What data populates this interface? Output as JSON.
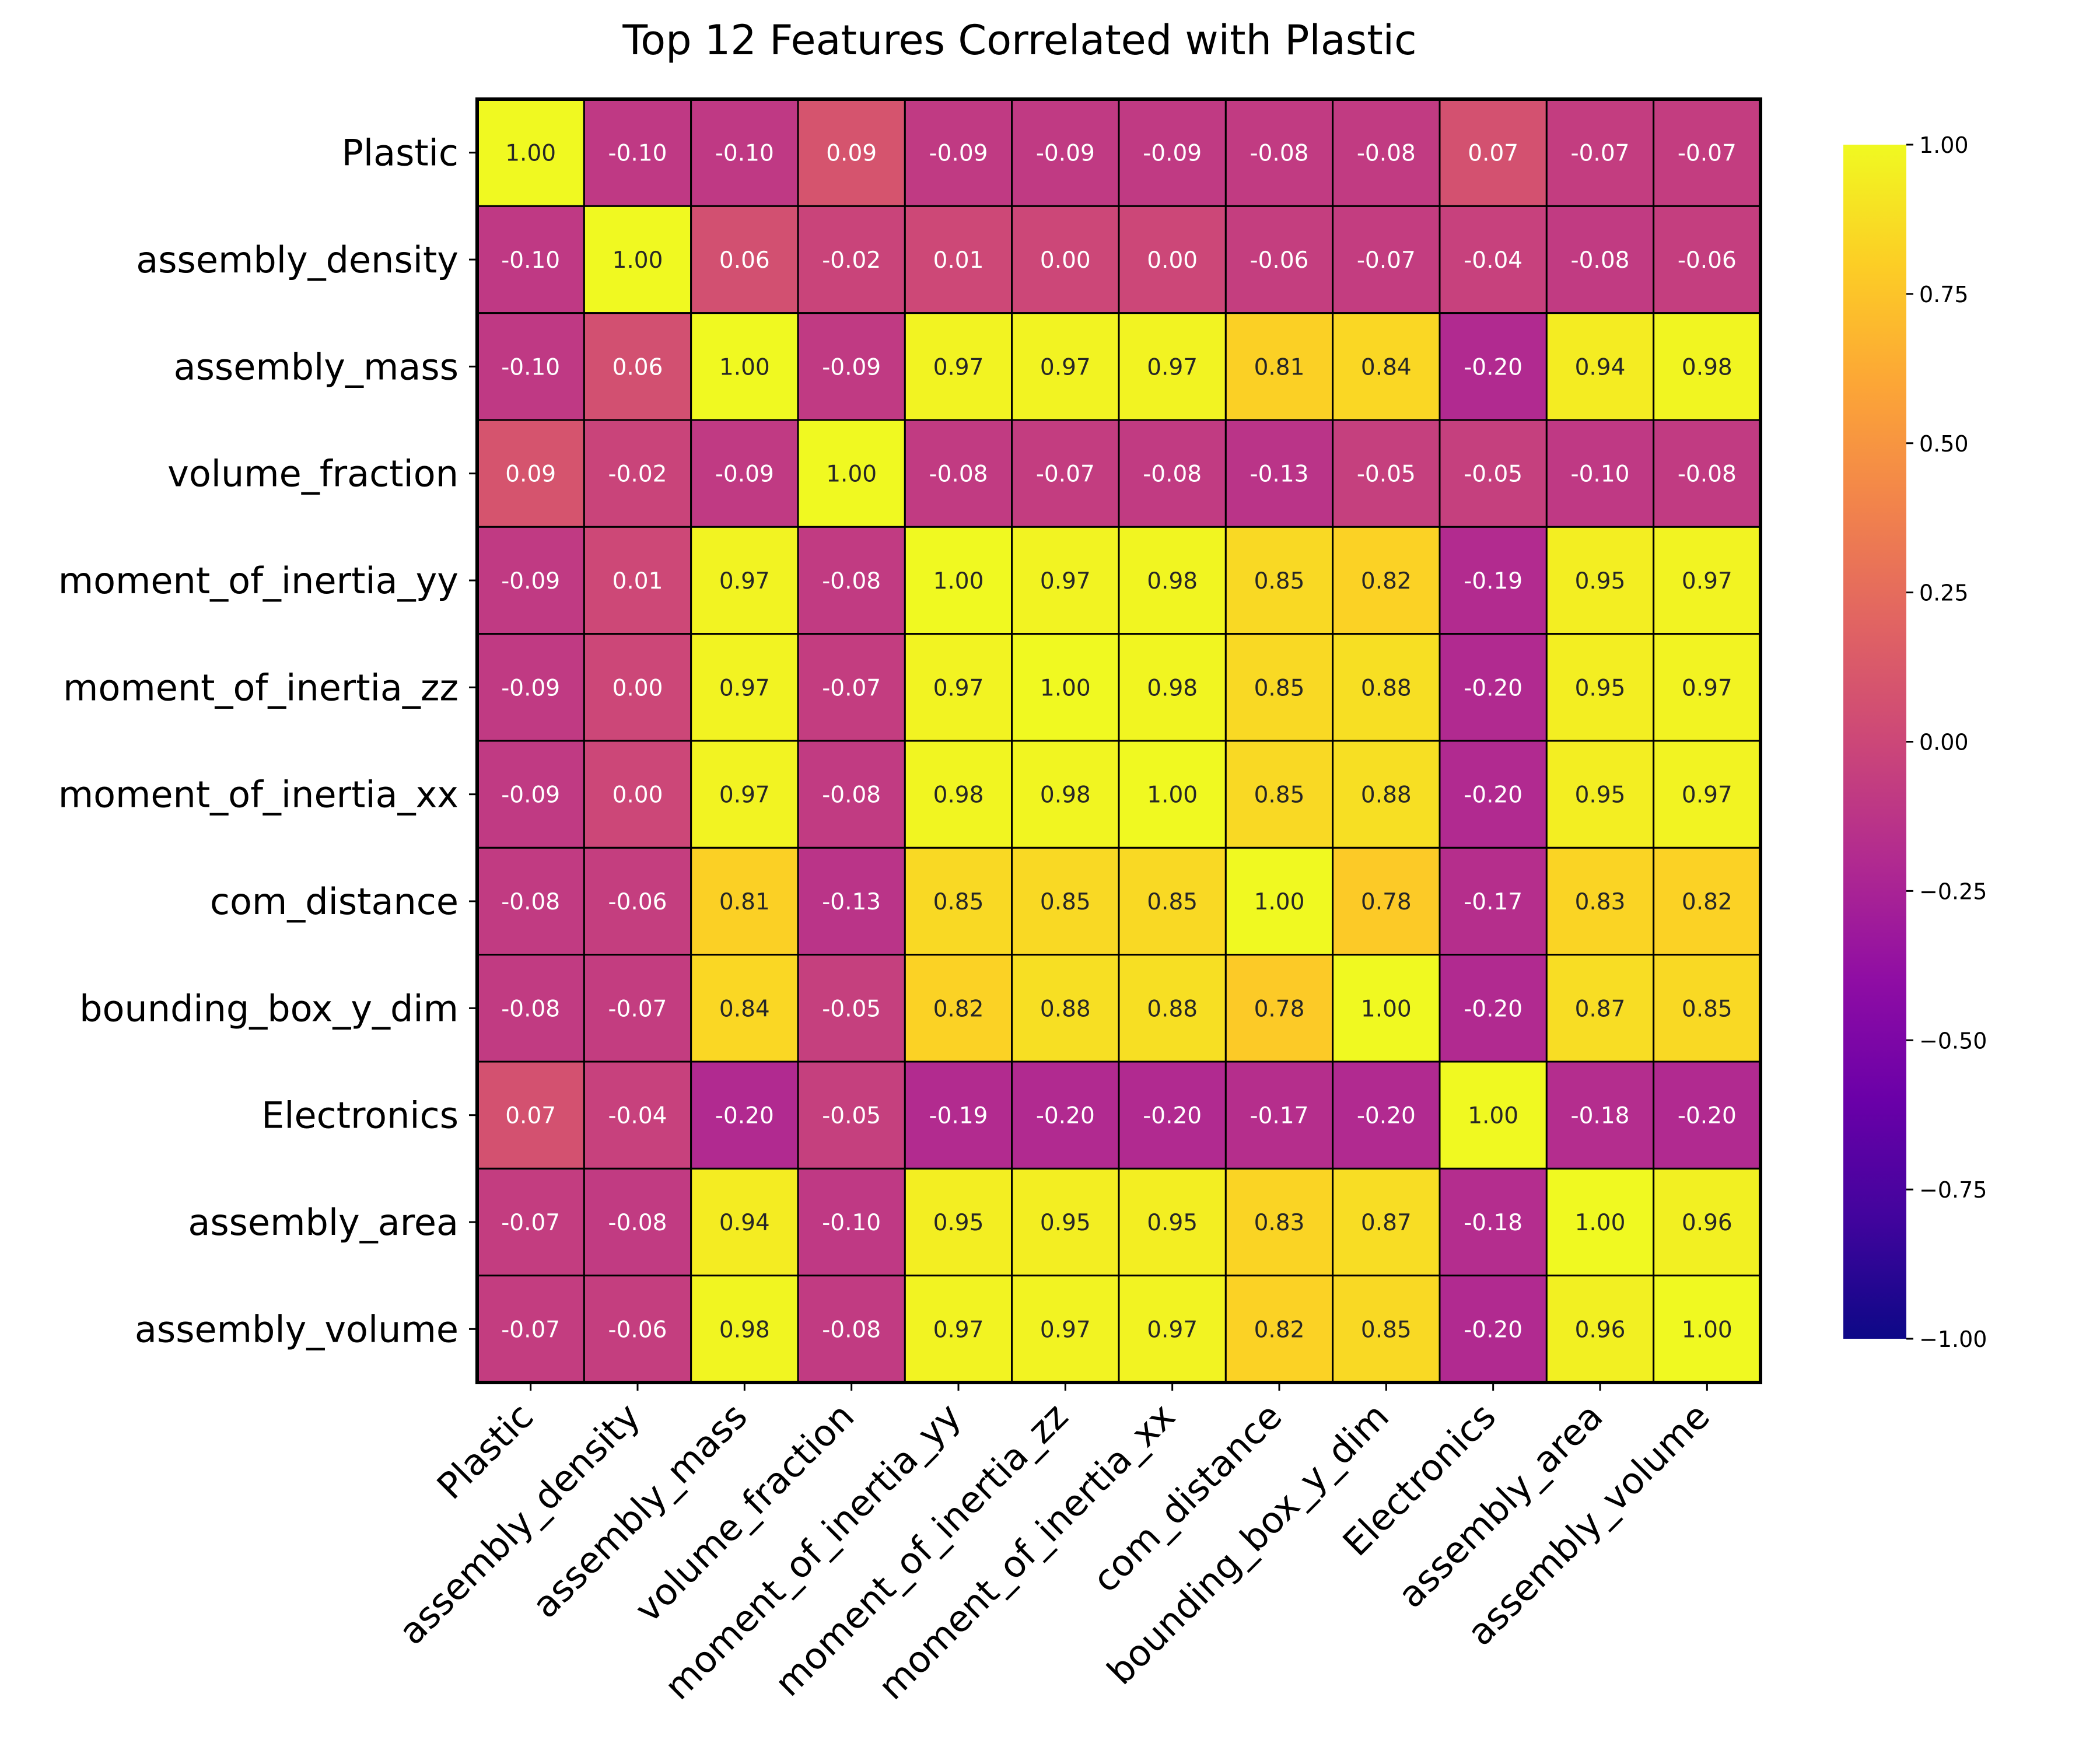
{
  "chart_data": {
    "type": "heatmap",
    "title": "Top 12 Features Correlated with Plastic",
    "labels": [
      "Plastic",
      "assembly_density",
      "assembly_mass",
      "volume_fraction",
      "moment_of_inertia_yy",
      "moment_of_inertia_zz",
      "moment_of_inertia_xx",
      "com_distance",
      "bounding_box_y_dim",
      "Electronics",
      "assembly_area",
      "assembly_volume"
    ],
    "matrix": [
      [
        1.0,
        -0.1,
        -0.1,
        0.09,
        -0.09,
        -0.09,
        -0.09,
        -0.08,
        -0.08,
        0.07,
        -0.07,
        -0.07
      ],
      [
        -0.1,
        1.0,
        0.06,
        -0.02,
        0.01,
        0.0,
        0.0,
        -0.06,
        -0.07,
        -0.04,
        -0.08,
        -0.06
      ],
      [
        -0.1,
        0.06,
        1.0,
        -0.09,
        0.97,
        0.97,
        0.97,
        0.81,
        0.84,
        -0.2,
        0.94,
        0.98
      ],
      [
        0.09,
        -0.02,
        -0.09,
        1.0,
        -0.08,
        -0.07,
        -0.08,
        -0.13,
        -0.05,
        -0.05,
        -0.1,
        -0.08
      ],
      [
        -0.09,
        0.01,
        0.97,
        -0.08,
        1.0,
        0.97,
        0.98,
        0.85,
        0.82,
        -0.19,
        0.95,
        0.97
      ],
      [
        -0.09,
        0.0,
        0.97,
        -0.07,
        0.97,
        1.0,
        0.98,
        0.85,
        0.88,
        -0.2,
        0.95,
        0.97
      ],
      [
        -0.09,
        0.0,
        0.97,
        -0.08,
        0.98,
        0.98,
        1.0,
        0.85,
        0.88,
        -0.2,
        0.95,
        0.97
      ],
      [
        -0.08,
        -0.06,
        0.81,
        -0.13,
        0.85,
        0.85,
        0.85,
        1.0,
        0.78,
        -0.17,
        0.83,
        0.82
      ],
      [
        -0.08,
        -0.07,
        0.84,
        -0.05,
        0.82,
        0.88,
        0.88,
        0.78,
        1.0,
        -0.2,
        0.87,
        0.85
      ],
      [
        0.07,
        -0.04,
        -0.2,
        -0.05,
        -0.19,
        -0.2,
        -0.2,
        -0.17,
        -0.2,
        1.0,
        -0.18,
        -0.2
      ],
      [
        -0.07,
        -0.08,
        0.94,
        -0.1,
        0.95,
        0.95,
        0.95,
        0.83,
        0.87,
        -0.18,
        1.0,
        0.96
      ],
      [
        -0.07,
        -0.06,
        0.98,
        -0.08,
        0.97,
        0.97,
        0.97,
        0.82,
        0.85,
        -0.2,
        0.96,
        1.0
      ]
    ],
    "colormap": "plasma",
    "vmin": -1.0,
    "vmax": 1.0,
    "colorbar_ticks": [
      "1.00",
      "0.75",
      "0.50",
      "0.25",
      "0.00",
      "−0.25",
      "−0.50",
      "−0.75",
      "−1.00"
    ],
    "colorbar_tick_values": [
      1.0,
      0.75,
      0.5,
      0.25,
      0.0,
      -0.25,
      -0.5,
      -0.75,
      -1.0
    ],
    "annotation_format": "2 decimals",
    "grid": true
  }
}
